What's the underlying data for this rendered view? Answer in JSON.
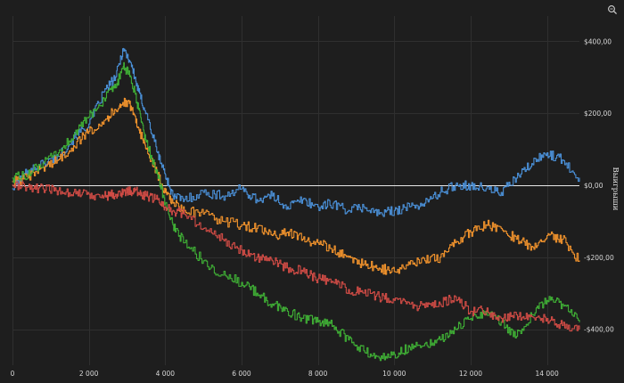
{
  "chart_data": {
    "type": "line",
    "title": "",
    "xlabel": "",
    "ylabel": "Выигрыши",
    "xlim": [
      0,
      14850
    ],
    "ylim": [
      -500,
      470
    ],
    "grid": true,
    "y_axis_side": "right",
    "legend": "none",
    "x_ticks": [
      {
        "value": 0,
        "label": "0"
      },
      {
        "value": 2000,
        "label": "2 000"
      },
      {
        "value": 4000,
        "label": "4 000"
      },
      {
        "value": 6000,
        "label": "6 000"
      },
      {
        "value": 8000,
        "label": "8 000"
      },
      {
        "value": 10000,
        "label": "10 000"
      },
      {
        "value": 12000,
        "label": "12 000"
      },
      {
        "value": 14000,
        "label": "14 000"
      }
    ],
    "y_ticks": [
      {
        "value": 400,
        "label": "$400,00"
      },
      {
        "value": 200,
        "label": "$200,00"
      },
      {
        "value": 0,
        "label": "$0,00"
      },
      {
        "value": -200,
        "label": "-$200,00"
      },
      {
        "value": -400,
        "label": "-$400,00"
      }
    ],
    "zero_line_color": "#e8e8e8",
    "series": [
      {
        "color": "#4a8fd6",
        "x": [
          0,
          400,
          800,
          1200,
          1600,
          2000,
          2400,
          2700,
          2900,
          3100,
          3300,
          3500,
          3800,
          4000,
          4200,
          4500,
          5000,
          5500,
          6000,
          6400,
          6800,
          7200,
          7600,
          8000,
          8400,
          8800,
          9200,
          9600,
          10000,
          10400,
          10800,
          11200,
          11600,
          12000,
          12400,
          12800,
          13200,
          13600,
          14000,
          14400,
          14850
        ],
        "y": [
          -10,
          40,
          60,
          80,
          130,
          170,
          260,
          300,
          380,
          340,
          260,
          200,
          90,
          30,
          -30,
          -40,
          -20,
          -30,
          -10,
          -40,
          -30,
          -60,
          -40,
          -60,
          -50,
          -70,
          -60,
          -80,
          -70,
          -60,
          -50,
          -20,
          0,
          0,
          -10,
          -20,
          20,
          60,
          90,
          70,
          20
        ]
      },
      {
        "color": "#f0922c",
        "x": [
          0,
          400,
          800,
          1200,
          1600,
          2000,
          2400,
          2700,
          2900,
          3100,
          3300,
          3500,
          3800,
          4000,
          4200,
          4500,
          5000,
          5500,
          6000,
          6400,
          6800,
          7200,
          7600,
          8000,
          8400,
          8800,
          9200,
          9600,
          10000,
          10400,
          10800,
          11200,
          11600,
          12000,
          12400,
          12800,
          13200,
          13600,
          14000,
          14400,
          14850
        ],
        "y": [
          10,
          20,
          50,
          70,
          110,
          150,
          180,
          210,
          230,
          220,
          160,
          100,
          30,
          -20,
          -50,
          -70,
          -80,
          -100,
          -110,
          -120,
          -140,
          -130,
          -150,
          -160,
          -180,
          -200,
          -220,
          -230,
          -240,
          -220,
          -210,
          -200,
          -160,
          -130,
          -110,
          -120,
          -150,
          -170,
          -140,
          -150,
          -210
        ]
      },
      {
        "color": "#3fae35",
        "x": [
          0,
          400,
          800,
          1200,
          1600,
          2000,
          2400,
          2700,
          2900,
          3100,
          3300,
          3500,
          3800,
          4000,
          4200,
          4500,
          5000,
          5500,
          6000,
          6400,
          6800,
          7200,
          7600,
          8000,
          8400,
          8800,
          9200,
          9600,
          10000,
          10400,
          10800,
          11200,
          11600,
          12000,
          12400,
          12800,
          13200,
          13600,
          14000,
          14400,
          14850
        ],
        "y": [
          20,
          30,
          60,
          90,
          140,
          190,
          240,
          270,
          330,
          300,
          210,
          120,
          30,
          -50,
          -110,
          -160,
          -210,
          -250,
          -270,
          -300,
          -330,
          -350,
          -370,
          -380,
          -390,
          -430,
          -460,
          -480,
          -470,
          -450,
          -440,
          -430,
          -400,
          -370,
          -350,
          -380,
          -420,
          -360,
          -320,
          -330,
          -380
        ]
      },
      {
        "color": "#cf4b45",
        "x": [
          0,
          400,
          800,
          1200,
          1600,
          2000,
          2400,
          2700,
          2900,
          3100,
          3300,
          3500,
          3800,
          4000,
          4200,
          4500,
          5000,
          5500,
          6000,
          6400,
          6800,
          7200,
          7600,
          8000,
          8400,
          8800,
          9200,
          9600,
          10000,
          10400,
          10800,
          11200,
          11600,
          12000,
          12400,
          12800,
          13200,
          13600,
          14000,
          14400,
          14850
        ],
        "y": [
          0,
          -5,
          -10,
          -15,
          -20,
          -25,
          -30,
          -25,
          -20,
          -15,
          -20,
          -30,
          -40,
          -60,
          -70,
          -80,
          -120,
          -150,
          -180,
          -200,
          -210,
          -230,
          -240,
          -260,
          -270,
          -290,
          -300,
          -310,
          -320,
          -330,
          -340,
          -330,
          -310,
          -350,
          -350,
          -370,
          -360,
          -365,
          -370,
          -390,
          -400
        ]
      }
    ]
  },
  "toolbar": {
    "zoom_icon": "magnifier-zoom-icon"
  }
}
